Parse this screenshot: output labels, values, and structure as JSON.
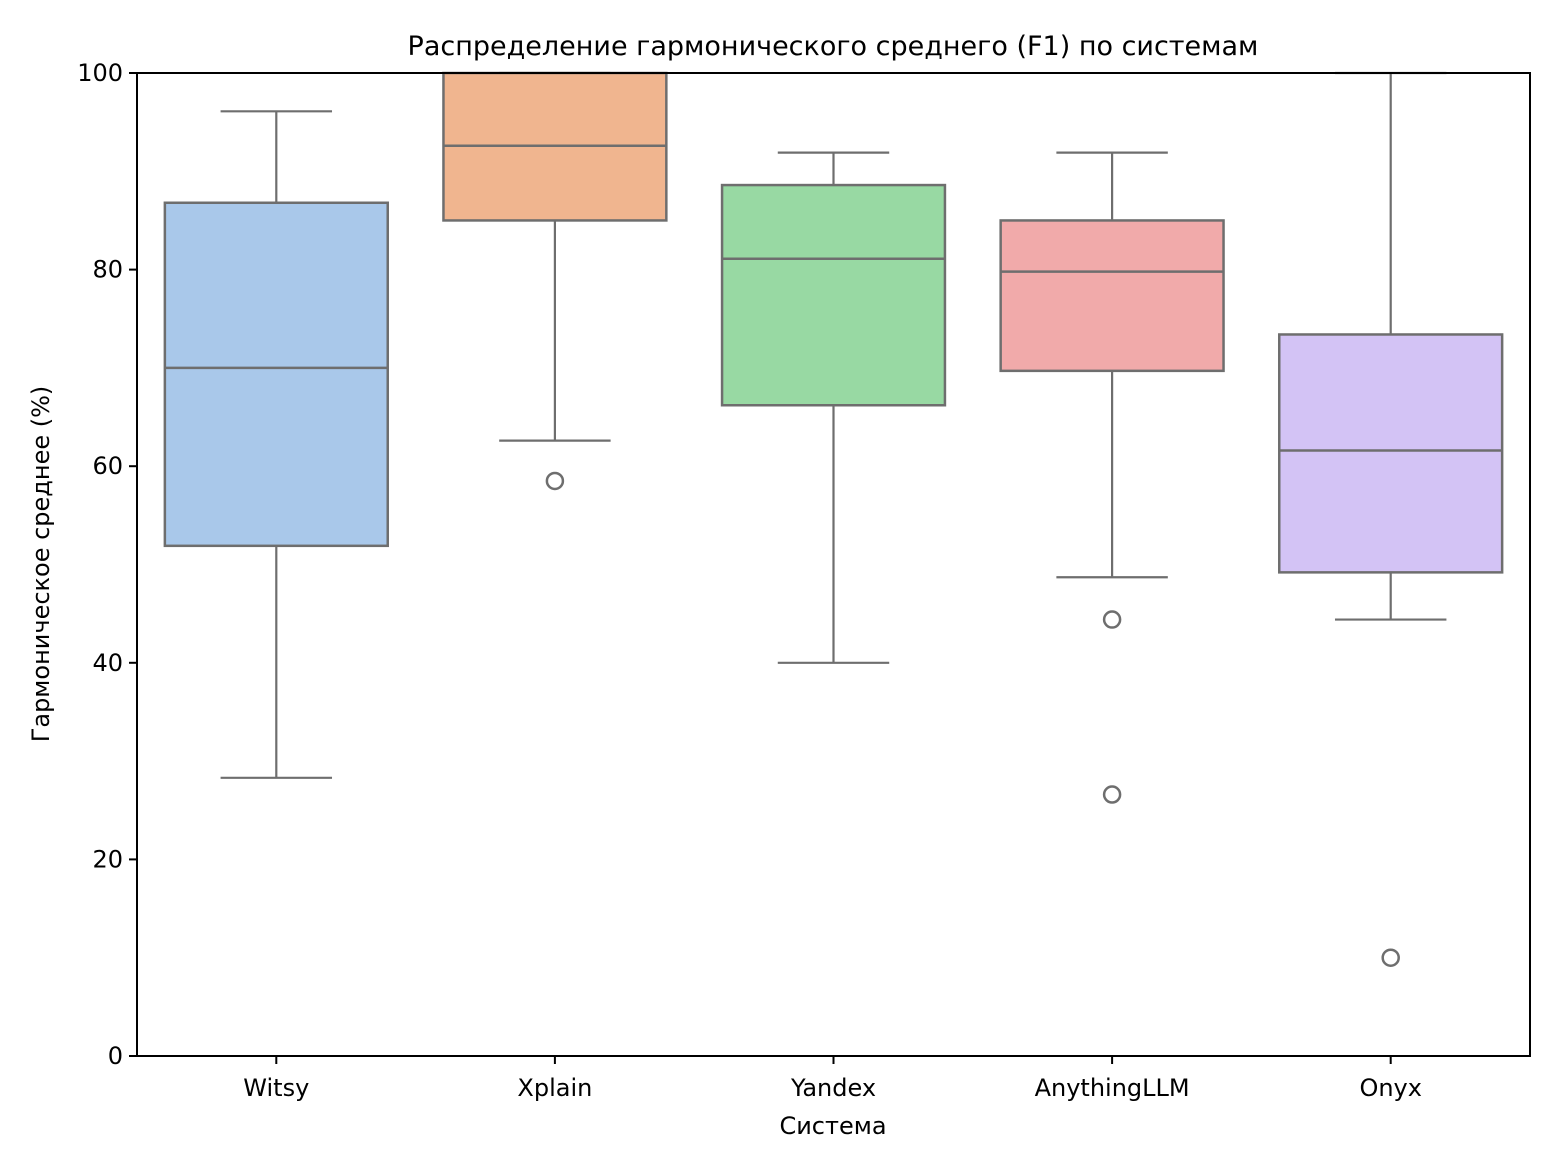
{
  "chart_data": {
    "type": "box",
    "title": "Распределение гармонического среднего (F1) по системам",
    "xlabel": "Система",
    "ylabel": "Гармоническое среднее (%)",
    "ylim": [
      0,
      100
    ],
    "yticks": [
      0,
      20,
      40,
      60,
      80,
      100
    ],
    "grid": false,
    "legend": null,
    "categories": [
      "Witsy",
      "Xplain",
      "Yandex",
      "AnythingLLM",
      "Onyx"
    ],
    "series": [
      {
        "name": "Witsy",
        "color": "#a9c8ea",
        "whisker_low": 28.3,
        "q1": 51.9,
        "median": 70.0,
        "q3": 86.8,
        "whisker_high": 96.1,
        "outliers": []
      },
      {
        "name": "Xplain",
        "color": "#f0b58f",
        "whisker_low": 62.6,
        "q1": 85.0,
        "median": 92.6,
        "q3": 100.0,
        "whisker_high": 100.0,
        "outliers": [
          58.5
        ]
      },
      {
        "name": "Yandex",
        "color": "#98d9a3",
        "whisker_low": 40.0,
        "q1": 66.2,
        "median": 81.1,
        "q3": 88.6,
        "whisker_high": 91.9,
        "outliers": []
      },
      {
        "name": "AnythingLLM",
        "color": "#f1aaaa",
        "whisker_low": 48.7,
        "q1": 69.7,
        "median": 79.8,
        "q3": 85.0,
        "whisker_high": 91.9,
        "outliers": [
          44.4,
          26.6
        ]
      },
      {
        "name": "Onyx",
        "color": "#d3c3f5",
        "whisker_low": 44.4,
        "q1": 49.2,
        "median": 61.6,
        "q3": 73.4,
        "whisker_high": 100.0,
        "outliers": [
          10.0
        ]
      }
    ],
    "line_color": "#6e6e6e"
  }
}
